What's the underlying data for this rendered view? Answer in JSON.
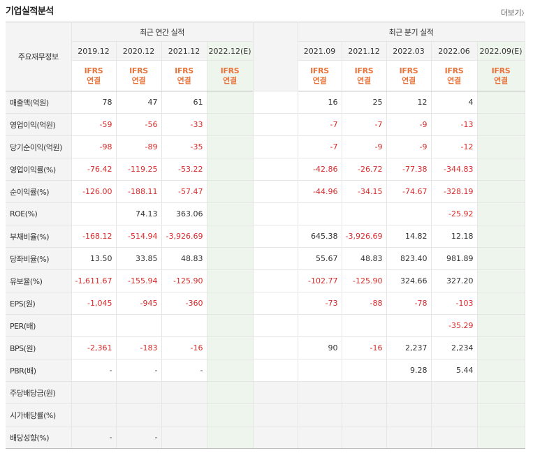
{
  "title": "기업실적분석",
  "more_label": "더보기",
  "more_arrow": "〉",
  "corner_label": "주요재무정보",
  "annual_header": "최근 연간 실적",
  "quarter_header": "최근 분기 실적",
  "annual_periods": [
    "2019.12",
    "2020.12",
    "2021.12",
    "2022.12(E)"
  ],
  "quarter_periods": [
    "2021.09",
    "2021.12",
    "2022.03",
    "2022.06",
    "2022.09(E)"
  ],
  "ifrs_top": "IFRS",
  "ifrs_bottom": "연결",
  "rows": [
    {
      "label": "매출액(억원)",
      "annual": [
        "78",
        "47",
        "61",
        ""
      ],
      "quarter": [
        "16",
        "25",
        "12",
        "4",
        ""
      ]
    },
    {
      "label": "영업이익(억원)",
      "annual": [
        "-59",
        "-56",
        "-33",
        ""
      ],
      "quarter": [
        "-7",
        "-7",
        "-9",
        "-13",
        ""
      ]
    },
    {
      "label": "당기순이익(억원)",
      "annual": [
        "-98",
        "-89",
        "-35",
        ""
      ],
      "quarter": [
        "-7",
        "-9",
        "-9",
        "-12",
        ""
      ]
    },
    {
      "label": "영업이익률(%)",
      "annual": [
        "-76.42",
        "-119.25",
        "-53.22",
        ""
      ],
      "quarter": [
        "-42.86",
        "-26.72",
        "-77.38",
        "-344.83",
        ""
      ]
    },
    {
      "label": "순이익률(%)",
      "annual": [
        "-126.00",
        "-188.11",
        "-57.47",
        ""
      ],
      "quarter": [
        "-44.96",
        "-34.15",
        "-74.67",
        "-328.19",
        ""
      ]
    },
    {
      "label": "ROE(%)",
      "annual": [
        "",
        "74.13",
        "363.06",
        ""
      ],
      "quarter": [
        "",
        "",
        "",
        "-25.92",
        ""
      ]
    },
    {
      "label": "부채비율(%)",
      "annual": [
        "-168.12",
        "-514.94",
        "-3,926.69",
        ""
      ],
      "quarter": [
        "645.38",
        "-3,926.69",
        "14.82",
        "12.18",
        ""
      ]
    },
    {
      "label": "당좌비율(%)",
      "annual": [
        "13.50",
        "33.85",
        "48.83",
        ""
      ],
      "quarter": [
        "55.67",
        "48.83",
        "823.40",
        "981.89",
        ""
      ]
    },
    {
      "label": "유보율(%)",
      "annual": [
        "-1,611.67",
        "-155.94",
        "-125.90",
        ""
      ],
      "quarter": [
        "-102.77",
        "-125.90",
        "324.66",
        "327.20",
        ""
      ]
    },
    {
      "label": "EPS(원)",
      "annual": [
        "-1,045",
        "-945",
        "-360",
        ""
      ],
      "quarter": [
        "-73",
        "-88",
        "-78",
        "-103",
        ""
      ]
    },
    {
      "label": "PER(배)",
      "annual": [
        "",
        "",
        "",
        ""
      ],
      "quarter": [
        "",
        "",
        "",
        "-35.29",
        ""
      ]
    },
    {
      "label": "BPS(원)",
      "annual": [
        "-2,361",
        "-183",
        "-16",
        ""
      ],
      "quarter": [
        "90",
        "-16",
        "2,237",
        "2,234",
        ""
      ]
    },
    {
      "label": "PBR(배)",
      "annual": [
        "-",
        "-",
        "-",
        ""
      ],
      "quarter": [
        "",
        "",
        "9.28",
        "5.44",
        ""
      ]
    },
    {
      "label": "주당배당금(원)",
      "annual": [
        "",
        "",
        "",
        ""
      ],
      "quarter": [
        "",
        "",
        "",
        "",
        ""
      ]
    },
    {
      "label": "시가배당률(%)",
      "annual": [
        "",
        "",
        "",
        ""
      ],
      "quarter": [
        "",
        "",
        "",
        "",
        ""
      ]
    },
    {
      "label": "배당성향(%)",
      "annual": [
        "-",
        "-",
        "",
        ""
      ],
      "quarter": [
        "",
        "",
        "",
        "",
        ""
      ]
    }
  ],
  "colors": {
    "negative": "#d72a2a",
    "ifrs": "#e8743b",
    "estimate_bg": "#eef5ec",
    "header_bg": "#f4f4f4"
  }
}
